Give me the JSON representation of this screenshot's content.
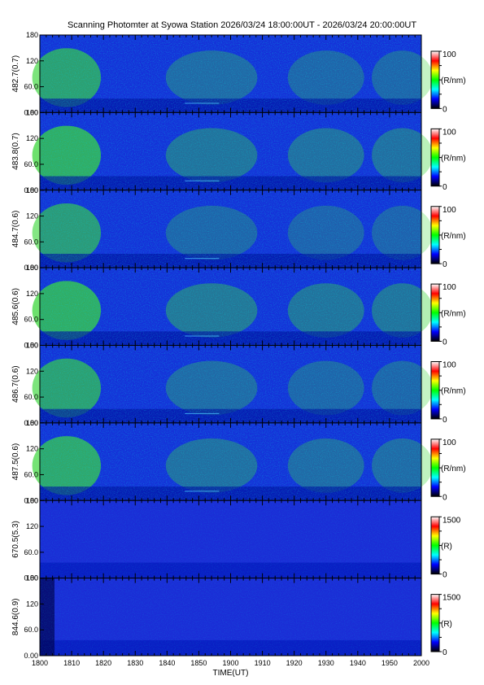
{
  "title": "Scanning Photomter at Syowa Station 2026/03/24 18:00:00UT - 2026/03/24 20:00:00UT",
  "colors": {
    "background_low": "#0000b0",
    "colormap": [
      "#000000",
      "#0000ff",
      "#00ffff",
      "#00ff00",
      "#ffff00",
      "#ff0000",
      "#ffffff"
    ]
  },
  "chart_data": {
    "type": "heatmap",
    "xlabel": "TIME(UT)",
    "x_ticks": [
      "1800",
      "1810",
      "1820",
      "1830",
      "1840",
      "1850",
      "1900",
      "1910",
      "1920",
      "1930",
      "1940",
      "1950",
      "2000"
    ],
    "xlim": [
      "18:00",
      "20:00"
    ],
    "ylim": [
      0,
      180
    ],
    "y_ticks": [
      "0.00",
      "60.0",
      "120",
      "180"
    ],
    "panels": [
      {
        "label": "482.7(0.7)",
        "cbar_max": "100",
        "cbar_min": "0",
        "cbar_unit": "(R/nm)",
        "intensity": 0.55
      },
      {
        "label": "483.8(0.7)",
        "cbar_max": "100",
        "cbar_min": "0",
        "cbar_unit": "(R/nm)",
        "intensity": 0.65
      },
      {
        "label": "484.7(0.6)",
        "cbar_max": "100",
        "cbar_min": "0",
        "cbar_unit": "(R/nm)",
        "intensity": 0.5
      },
      {
        "label": "485.6(0.6)",
        "cbar_max": "100",
        "cbar_min": "0",
        "cbar_unit": "(R/nm)",
        "intensity": 0.7
      },
      {
        "label": "486.7(0.6)",
        "cbar_max": "100",
        "cbar_min": "0",
        "cbar_unit": "(R/nm)",
        "intensity": 0.55
      },
      {
        "label": "487.5(0.6)",
        "cbar_max": "100",
        "cbar_min": "0",
        "cbar_unit": "(R/nm)",
        "intensity": 0.6
      },
      {
        "label": "670.5(5.3)",
        "cbar_max": "1500",
        "cbar_min": "0",
        "cbar_unit": "(R)",
        "intensity": 0.15
      },
      {
        "label": "844.6(0.9)",
        "cbar_max": "1500",
        "cbar_min": "0",
        "cbar_unit": "(R)",
        "intensity": 0.12
      }
    ]
  }
}
